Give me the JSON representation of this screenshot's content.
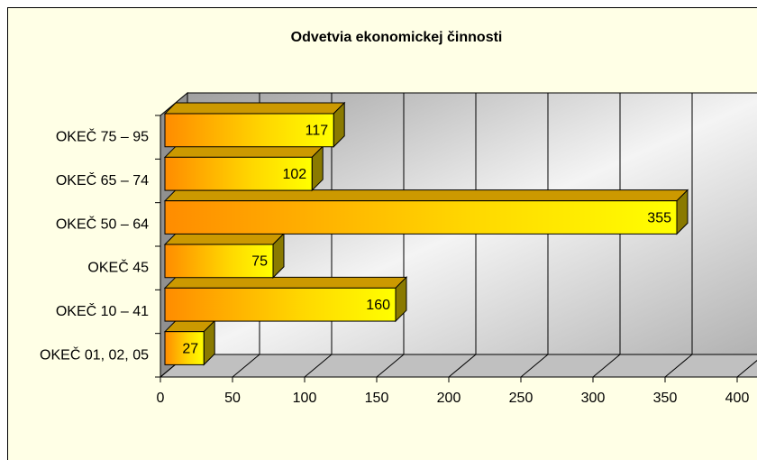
{
  "chart_data": {
    "type": "bar",
    "orientation": "horizontal",
    "title": "Odvetvia ekonomickej činnosti",
    "categories": [
      "OKEČ 01, 02, 05",
      "OKEČ 10 – 41",
      "OKEČ 45",
      "OKEČ 50 – 64",
      "OKEČ 65 – 74",
      "OKEČ 75 – 95"
    ],
    "values": [
      27,
      160,
      75,
      355,
      102,
      117
    ],
    "color": "#ffee00",
    "xlim": [
      0,
      400
    ],
    "xticks": [
      0,
      50,
      100,
      150,
      200,
      250,
      300,
      350,
      400
    ],
    "grid": true
  }
}
